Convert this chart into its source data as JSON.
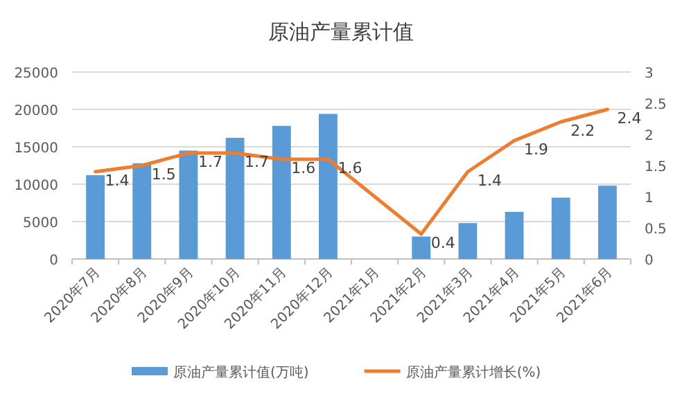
{
  "chart_data": {
    "type": "bar",
    "title": "原油产量累计值",
    "categories": [
      "2020年7月",
      "2020年8月",
      "2020年9月",
      "2020年10月",
      "2020年11月",
      "2020年12月",
      "2021年1月",
      "2021年2月",
      "2021年3月",
      "2021年4月",
      "2021年5月",
      "2021年6月"
    ],
    "series": [
      {
        "name": "原油产量累计值(万吨)",
        "color": "#5b9bd5",
        "values": [
          11200,
          12800,
          14500,
          16200,
          17800,
          19400,
          null,
          3000,
          4800,
          6300,
          8200,
          9800
        ]
      },
      {
        "name": "原油产量累计增长(%)",
        "type": "line",
        "axis": "y2",
        "color": "#ed7d31",
        "marker": "none",
        "values": [
          1.4,
          1.5,
          1.7,
          1.7,
          1.6,
          1.6,
          null,
          0.4,
          1.4,
          1.9,
          2.2,
          2.4
        ],
        "value_labels": [
          "1.4",
          "1.5",
          "1.7",
          "1.7",
          "1.6",
          "1.6",
          null,
          "0.4",
          "1.4",
          "1.9",
          "2.2",
          "2.4"
        ]
      }
    ],
    "ylim": [
      0,
      25000
    ],
    "yticks": [
      0,
      5000,
      10000,
      15000,
      20000,
      25000
    ],
    "y2lim": [
      0,
      3
    ],
    "y2ticks": [
      0,
      0.5,
      1,
      1.5,
      2,
      2.5,
      3
    ],
    "grid": "y",
    "legend": "bottom"
  }
}
